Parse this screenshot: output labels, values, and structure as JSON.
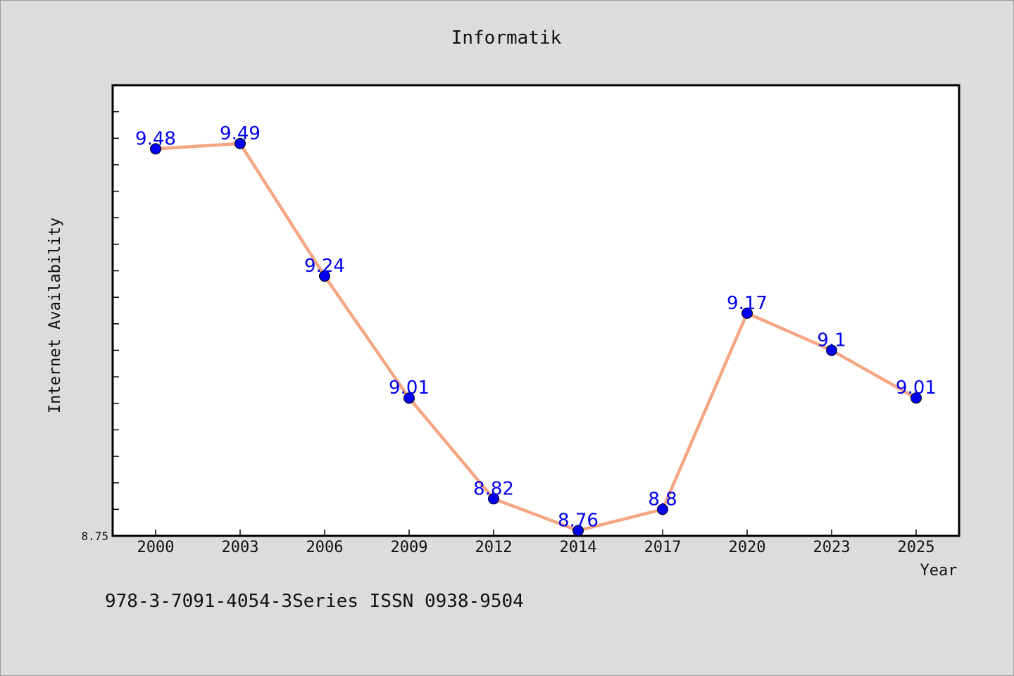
{
  "chart_data": {
    "type": "line",
    "title": "Informatik",
    "xlabel": "Year",
    "ylabel": "Internet Availability",
    "categories": [
      "2000",
      "2003",
      "2006",
      "2009",
      "2012",
      "2014",
      "2017",
      "2020",
      "2023",
      "2025"
    ],
    "values": [
      9.48,
      9.49,
      9.24,
      9.01,
      8.82,
      8.76,
      8.8,
      9.17,
      9.1,
      9.01
    ],
    "data_labels": [
      "9.48",
      "9.49",
      "9.24",
      "9.01",
      "8.82",
      "8.76",
      "8.8",
      "9.17",
      "9.1",
      "9.01"
    ],
    "ylim": [
      8.75,
      9.6
    ],
    "ytick_labels": [
      "8.75"
    ],
    "grid": false,
    "legend": "none",
    "line_color": "#f4a582",
    "marker_color": "#0000ee",
    "label_color": "#0000ee"
  },
  "footer": {
    "text": "978-3-7091-4054-3Series ISSN 0938-9504"
  }
}
